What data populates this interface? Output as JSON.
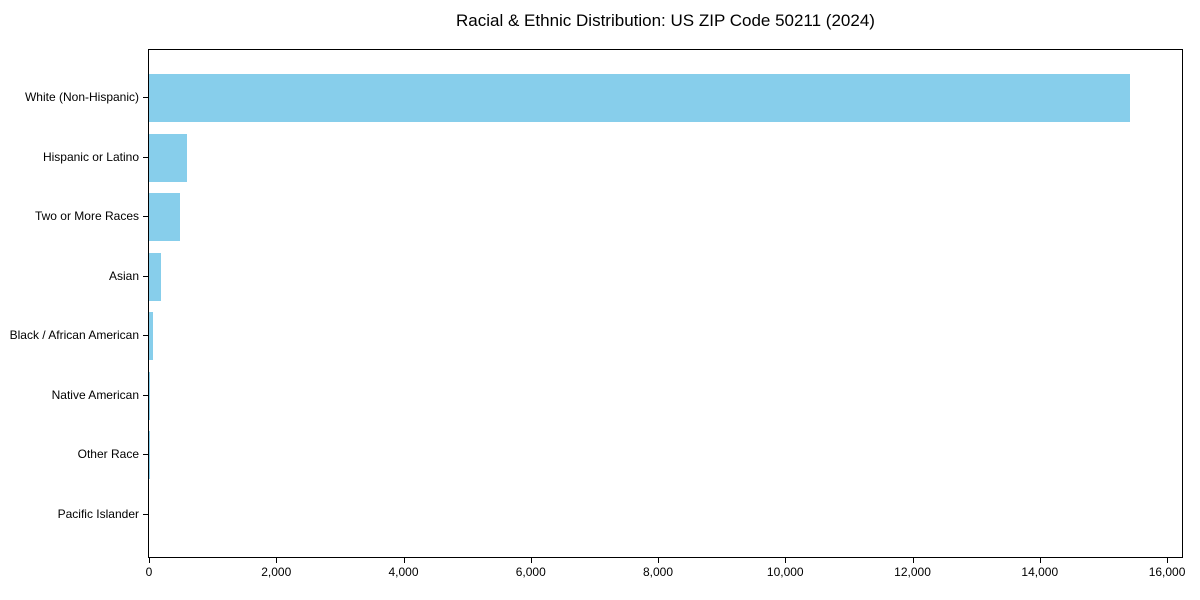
{
  "title": "Racial & Ethnic Distribution: US ZIP Code 50211 (2024)",
  "colors": {
    "bar": "#87CEEB",
    "spine": "#000000",
    "text": "#000000",
    "background": "#FFFFFF"
  },
  "chart_data": {
    "type": "bar",
    "orientation": "horizontal",
    "title": "Racial & Ethnic Distribution: US ZIP Code 50211 (2024)",
    "categories": [
      "White (Non-Hispanic)",
      "Hispanic or Latino",
      "Two or More Races",
      "Asian",
      "Black / African American",
      "Native American",
      "Other Race",
      "Pacific Islander"
    ],
    "values": [
      15425,
      590,
      490,
      185,
      67,
      15,
      4,
      1
    ],
    "xlabel": "",
    "ylabel": "",
    "xlim": [
      0,
      16235
    ],
    "x_ticks": [
      0,
      2000,
      4000,
      6000,
      8000,
      10000,
      12000,
      14000,
      16000
    ],
    "x_tick_labels": [
      "0",
      "2,000",
      "4,000",
      "6,000",
      "8,000",
      "10,000",
      "12,000",
      "14,000",
      "16,000"
    ],
    "bar_color": "#87CEEB",
    "grid": false,
    "legend": null
  }
}
